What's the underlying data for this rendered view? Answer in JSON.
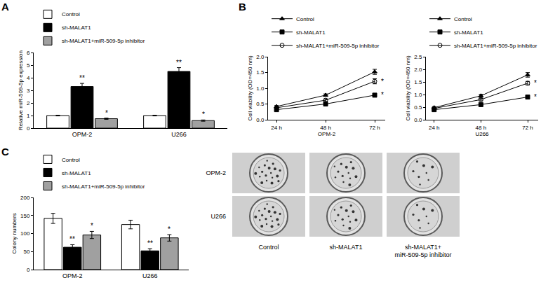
{
  "chart_data": [
    {
      "panel": "A",
      "type": "bar",
      "categories": [
        "OPM-2",
        "U266"
      ],
      "y_label": "Relative miR-509-5p expression",
      "ylim": [
        0,
        6
      ],
      "yticks": [
        0,
        1,
        2,
        3,
        4,
        5,
        6
      ],
      "grid": false,
      "legend": "top",
      "series": [
        {
          "name": "Control",
          "color": "#ffffff",
          "values": [
            1.0,
            1.0
          ],
          "errors": [
            0.03,
            0.03
          ],
          "marks": [
            null,
            null
          ]
        },
        {
          "name": "sh-MALAT1",
          "color": "#000000",
          "values": [
            3.3,
            4.5
          ],
          "errors": [
            0.25,
            0.3
          ],
          "marks": [
            "**",
            "**"
          ]
        },
        {
          "name": "sh-MALAT1+miR-509-5p inhibitor",
          "color": "#a0a0a0",
          "values": [
            0.75,
            0.6
          ],
          "errors": [
            0.05,
            0.05
          ],
          "marks": [
            "*",
            "*"
          ]
        }
      ]
    },
    {
      "panel": "B",
      "type": "line",
      "categories": [
        "24 h",
        "48 h",
        "72 h"
      ],
      "x_label": "OPM-2",
      "y_label": "Cell viability (OD=450 nm)",
      "ylim": [
        0,
        2
      ],
      "yticks": [
        {
          "value": 0,
          "label": "0.0"
        },
        {
          "value": 0.5,
          "label": "0.5"
        },
        {
          "value": 1,
          "label": "1.0"
        },
        {
          "value": 1.5,
          "label": "1.5"
        },
        {
          "value": 2,
          "label": "2.0"
        }
      ],
      "grid": false,
      "legend": "top",
      "series": [
        {
          "name": "Control",
          "color": "#000000",
          "marker": "triangle-up",
          "line_style": "solid",
          "values": [
            0.42,
            0.78,
            1.52
          ],
          "errors": [
            0.03,
            0.04,
            0.08
          ],
          "marks": [
            null,
            null,
            null
          ]
        },
        {
          "name": "sh-MALAT1",
          "color": "#000000",
          "marker": "square",
          "line_style": "solid",
          "values": [
            0.32,
            0.5,
            0.78
          ],
          "errors": [
            0.02,
            0.03,
            0.05
          ],
          "marks": [
            null,
            null,
            "*"
          ]
        },
        {
          "name": "sh-MALAT1+miR-509-5p inhibitor",
          "color": "#000000",
          "marker": "circle-open",
          "line_style": "solid",
          "values": [
            0.38,
            0.62,
            1.22
          ],
          "errors": [
            0.03,
            0.04,
            0.08
          ],
          "marks": [
            null,
            null,
            "*"
          ]
        }
      ]
    },
    {
      "type": "line",
      "categories": [
        "24 h",
        "48 h",
        "72 h"
      ],
      "x_label": "U266",
      "y_label": "Cell viability (OD=450 nm)",
      "ylim": [
        0,
        2.5
      ],
      "yticks": [
        {
          "value": 0,
          "label": "0.0"
        },
        {
          "value": 0.5,
          "label": "0.5"
        },
        {
          "value": 1,
          "label": "1.0"
        },
        {
          "value": 1.5,
          "label": "1.5"
        },
        {
          "value": 2,
          "label": "2.0"
        },
        {
          "value": 2.5,
          "label": "2.5"
        }
      ],
      "grid": false,
      "legend": "top",
      "series": [
        {
          "name": "Control",
          "color": "#000000",
          "marker": "triangle-up",
          "line_style": "solid",
          "values": [
            0.48,
            0.95,
            1.78
          ],
          "errors": [
            0.04,
            0.06,
            0.09
          ],
          "marks": [
            null,
            null,
            null
          ]
        },
        {
          "name": "sh-MALAT1",
          "color": "#000000",
          "marker": "square",
          "line_style": "solid",
          "values": [
            0.4,
            0.6,
            0.9
          ],
          "errors": [
            0.03,
            0.04,
            0.06
          ],
          "marks": [
            null,
            null,
            "*"
          ]
        },
        {
          "name": "sh-MALAT1+miR-509-5p inhibitor",
          "color": "#000000",
          "marker": "circle-open",
          "line_style": "solid",
          "values": [
            0.45,
            0.8,
            1.45
          ],
          "errors": [
            0.03,
            0.05,
            0.07
          ],
          "marks": [
            null,
            null,
            "*"
          ]
        }
      ]
    },
    {
      "panel": "C",
      "type": "bar",
      "categories": [
        "OPM-2",
        "U266"
      ],
      "y_label": "Colony numbers",
      "ylim": [
        0,
        200
      ],
      "yticks": [
        0,
        50,
        100,
        150,
        200
      ],
      "grid": false,
      "legend": "top",
      "series": [
        {
          "name": "Control",
          "color": "#ffffff",
          "values": [
            142,
            125
          ],
          "errors": [
            14,
            12
          ],
          "marks": [
            null,
            null
          ]
        },
        {
          "name": "sh-MALAT1",
          "color": "#000000",
          "values": [
            62,
            52
          ],
          "errors": [
            7,
            6
          ],
          "marks": [
            "**",
            "**"
          ]
        },
        {
          "name": "sh-MALAT1+miR-509-5p inhibitor",
          "color": "#a0a0a0",
          "values": [
            96,
            88
          ],
          "errors": [
            10,
            9
          ],
          "marks": [
            "*",
            "*"
          ]
        }
      ]
    },
    {
      "type": "image_grid",
      "rows": [
        "OPM-2",
        "U266"
      ],
      "columns": [
        "Control",
        "sh-MALAT1",
        "sh-MALAT1+\nmiR-509-5p inhibitor"
      ]
    }
  ]
}
